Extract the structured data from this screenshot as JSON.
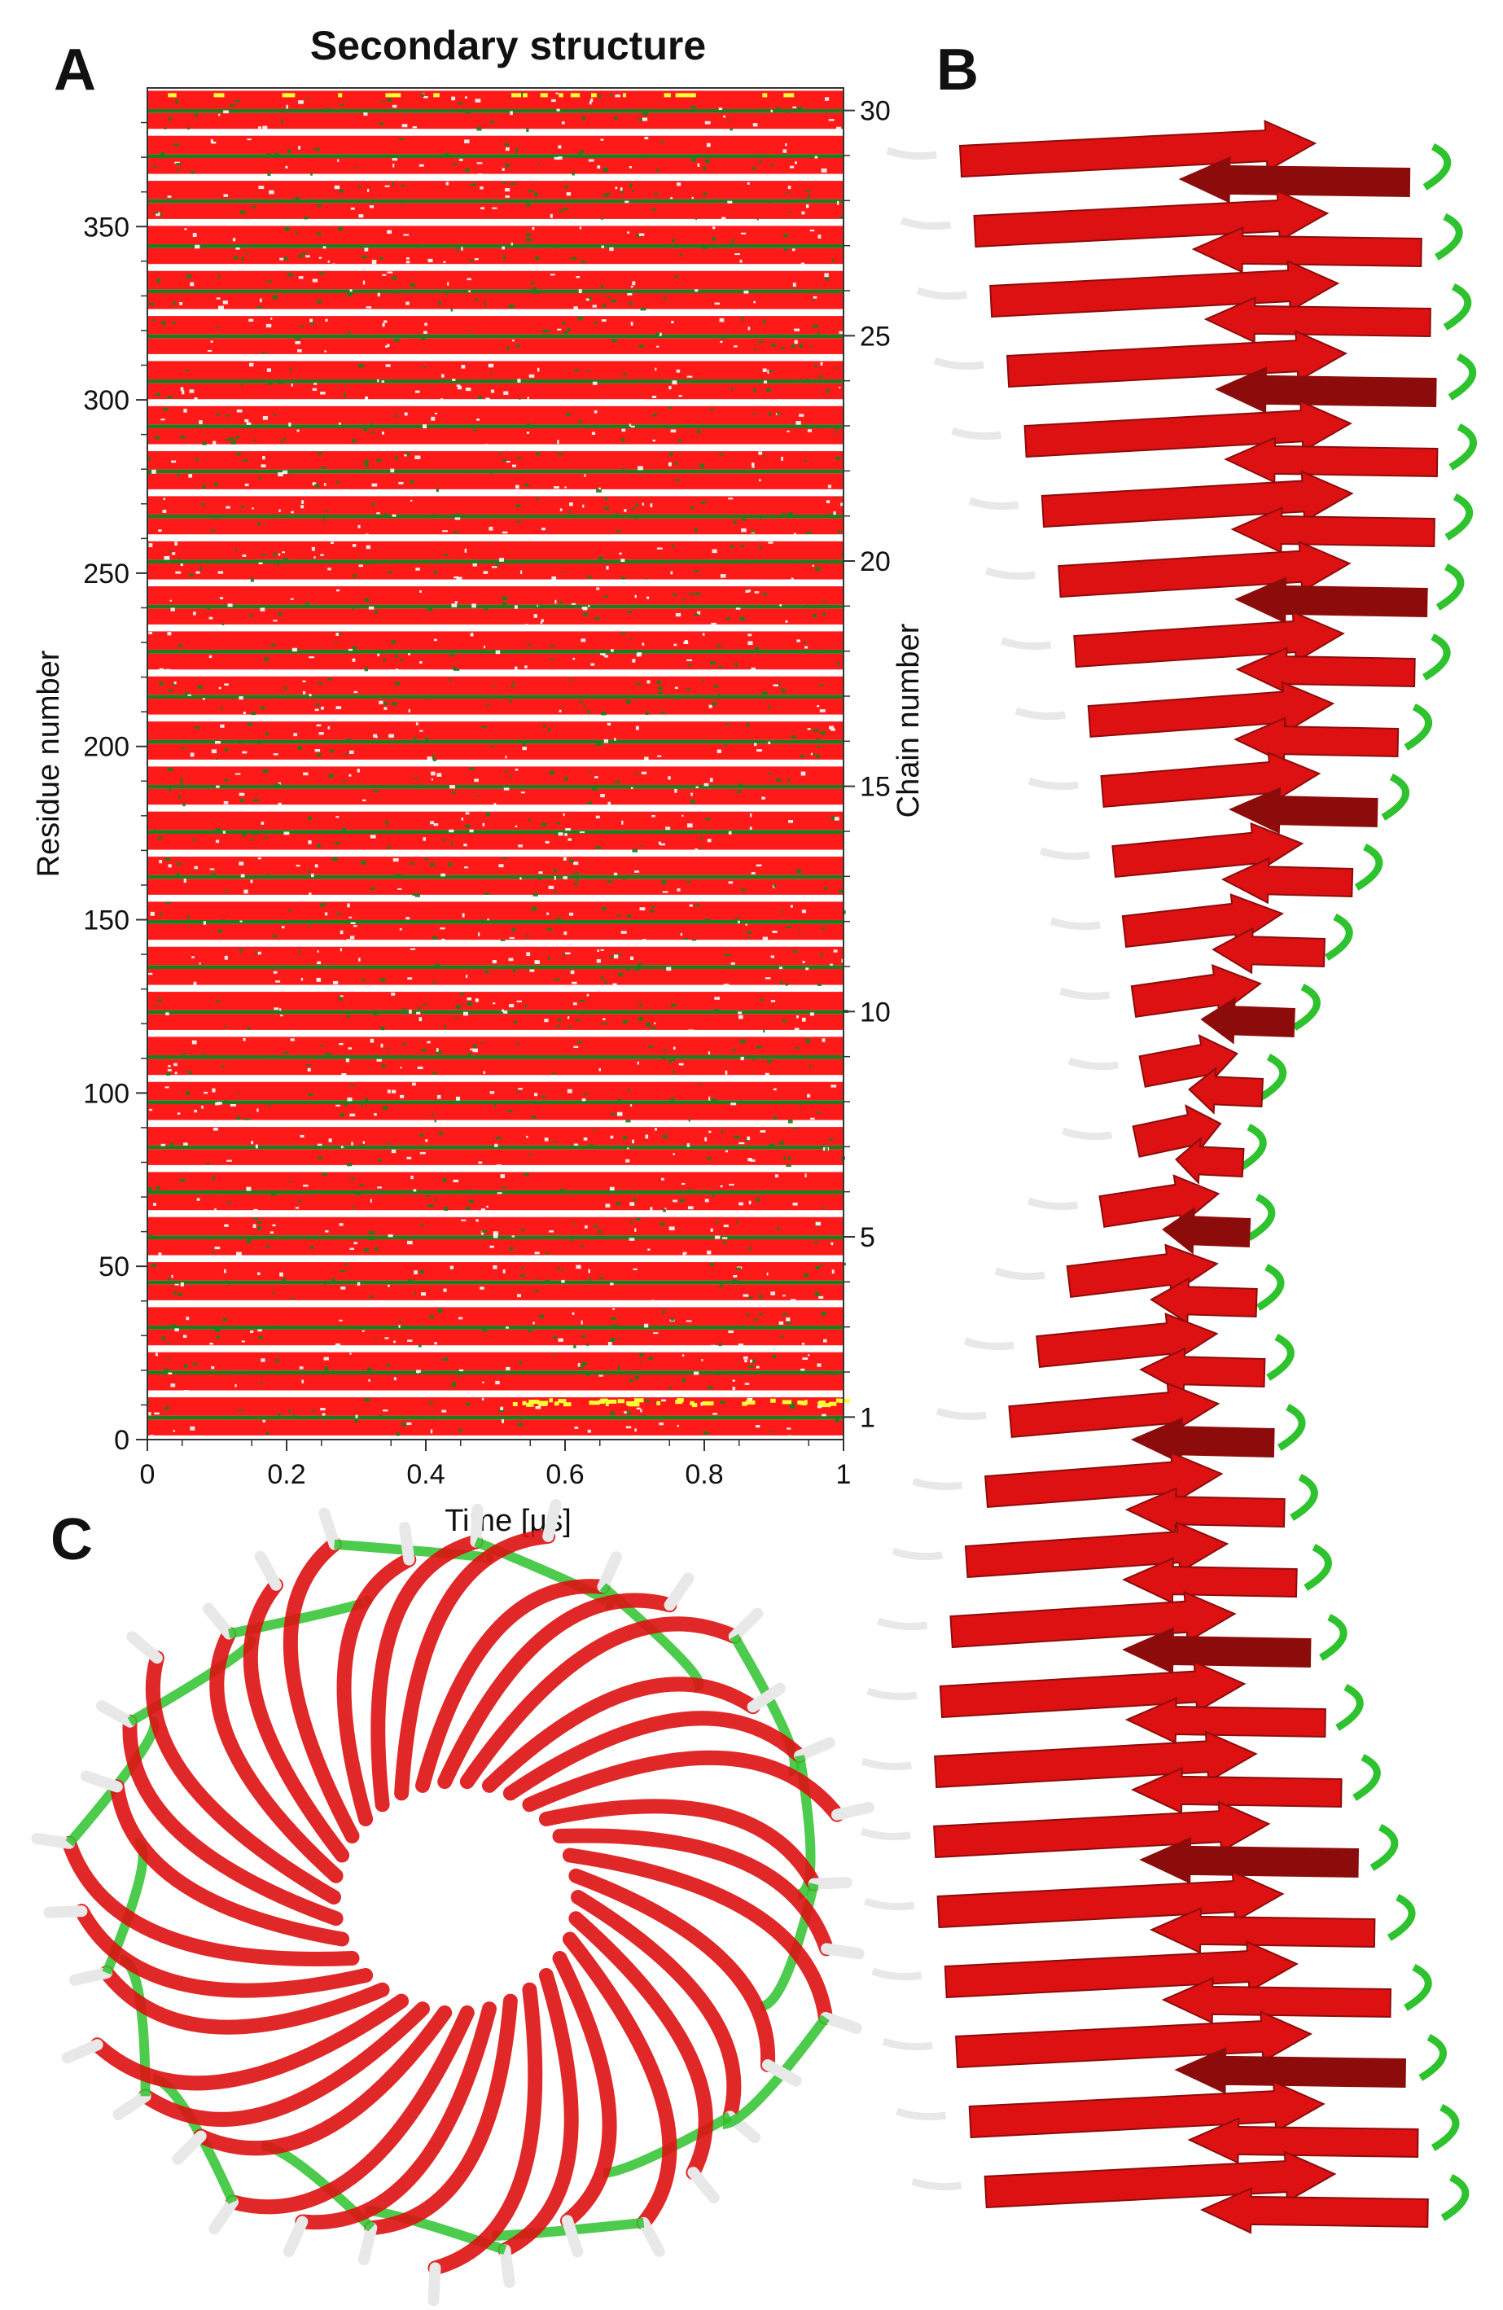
{
  "panels": {
    "a": "A",
    "b": "B",
    "c": "C"
  },
  "chart_data": {
    "type": "heatmap",
    "title": "Secondary structure",
    "xlabel": "Time [µs]",
    "ylabel": "Residue number",
    "y2label": "Chain number",
    "xlim": [
      0,
      1
    ],
    "ylim": [
      0,
      390
    ],
    "x_ticks": [
      0,
      0.2,
      0.4,
      0.6,
      0.8,
      1
    ],
    "x_tick_labels": [
      "0",
      "0.2",
      "0.4",
      "0.6",
      "0.8",
      "1"
    ],
    "y_ticks": [
      0,
      50,
      100,
      150,
      200,
      250,
      300,
      350
    ],
    "y_tick_labels": [
      "0",
      "50",
      "100",
      "150",
      "200",
      "250",
      "300",
      "350"
    ],
    "y2_ticks": [
      1,
      5,
      10,
      15,
      20,
      25,
      30
    ],
    "y2_tick_labels": [
      "1",
      "5",
      "10",
      "15",
      "20",
      "25",
      "30"
    ],
    "n_chains": 30,
    "residues_per_chain": 13,
    "structure_colors": {
      "strand": "#ff1a1a",
      "turn": "#1e7b1e",
      "coil": "#ffffff",
      "bridge": "#ffff33"
    }
  },
  "colors": {
    "strand": "#dd1111",
    "strand_dark": "#8c0c0c",
    "loop_green": "#2ec22e",
    "coil_white": "#e8e8e8"
  }
}
